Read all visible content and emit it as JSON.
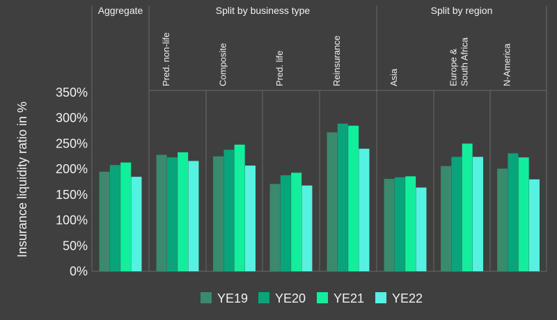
{
  "chart_data": {
    "type": "bar",
    "ylabel": "Insurance liquidity ratio in %",
    "ylim": [
      0,
      350
    ],
    "yticks": [
      0,
      50,
      100,
      150,
      200,
      250,
      300,
      350
    ],
    "ytick_labels": [
      "0%",
      "50%",
      "100%",
      "150%",
      "200%",
      "250%",
      "300%",
      "350%"
    ],
    "grid": false,
    "legend_position": "bottom",
    "groups": [
      {
        "label": "Aggregate",
        "start": 0,
        "span": 1
      },
      {
        "label": "Split by business type",
        "start": 1,
        "span": 4
      },
      {
        "label": "Split by region",
        "start": 5,
        "span": 3
      }
    ],
    "categories": [
      "",
      "Pred. non-life",
      "Composite",
      "Pred. life",
      "Reinsurance",
      "Asia",
      "Europe & South Africa",
      "N-America"
    ],
    "series": [
      {
        "name": "YE19",
        "color": "#3a8a6d",
        "values": [
          195,
          228,
          225,
          171,
          272,
          181,
          206,
          201
        ]
      },
      {
        "name": "YE20",
        "color": "#0aa47a",
        "values": [
          208,
          223,
          238,
          188,
          289,
          184,
          224,
          231
        ]
      },
      {
        "name": "YE21",
        "color": "#13ee9d",
        "values": [
          213,
          233,
          248,
          193,
          285,
          186,
          250,
          223
        ]
      },
      {
        "name": "YE22",
        "color": "#55f2e1",
        "values": [
          185,
          216,
          207,
          168,
          240,
          164,
          224,
          180
        ]
      }
    ]
  }
}
